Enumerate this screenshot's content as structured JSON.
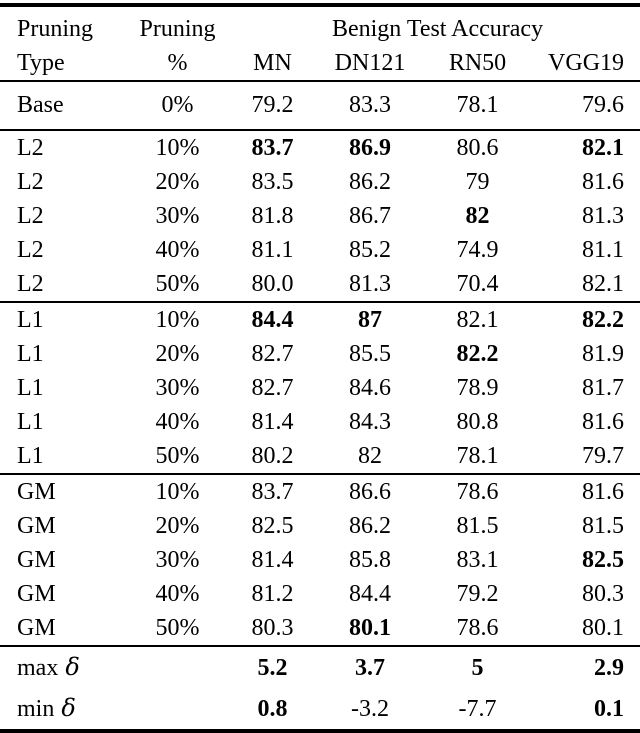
{
  "page": {
    "background_color": "#ffffff",
    "text_color": "#000000",
    "rule_color": "#000000"
  },
  "table": {
    "header": {
      "col1_line1": "Pruning",
      "col1_line2": "Type",
      "col2_line1": "Pruning",
      "col2_line2": "%",
      "group_title": "Benign Test Accuracy",
      "models": [
        "MN",
        "DN121",
        "RN50",
        "VGG19"
      ]
    },
    "base_row": {
      "type": "Base",
      "pct": "0%",
      "values": [
        "79.2",
        "83.3",
        "78.1",
        "79.6"
      ],
      "bold": [
        false,
        false,
        false,
        false
      ]
    },
    "sections": [
      {
        "name": "L2",
        "rows": [
          {
            "type": "L2",
            "pct": "10%",
            "values": [
              "83.7",
              "86.9",
              "80.6",
              "82.1"
            ],
            "bold": [
              true,
              true,
              false,
              true
            ]
          },
          {
            "type": "L2",
            "pct": "20%",
            "values": [
              "83.5",
              "86.2",
              "79",
              "81.6"
            ],
            "bold": [
              false,
              false,
              false,
              false
            ]
          },
          {
            "type": "L2",
            "pct": "30%",
            "values": [
              "81.8",
              "86.7",
              "82",
              "81.3"
            ],
            "bold": [
              false,
              false,
              true,
              false
            ]
          },
          {
            "type": "L2",
            "pct": "40%",
            "values": [
              "81.1",
              "85.2",
              "74.9",
              "81.1"
            ],
            "bold": [
              false,
              false,
              false,
              false
            ]
          },
          {
            "type": "L2",
            "pct": "50%",
            "values": [
              "80.0",
              "81.3",
              "70.4",
              "82.1"
            ],
            "bold": [
              false,
              false,
              false,
              false
            ]
          }
        ]
      },
      {
        "name": "L1",
        "rows": [
          {
            "type": "L1",
            "pct": "10%",
            "values": [
              "84.4",
              "87",
              "82.1",
              "82.2"
            ],
            "bold": [
              true,
              true,
              false,
              true
            ]
          },
          {
            "type": "L1",
            "pct": "20%",
            "values": [
              "82.7",
              "85.5",
              "82.2",
              "81.9"
            ],
            "bold": [
              false,
              false,
              true,
              false
            ]
          },
          {
            "type": "L1",
            "pct": "30%",
            "values": [
              "82.7",
              "84.6",
              "78.9",
              "81.7"
            ],
            "bold": [
              false,
              false,
              false,
              false
            ]
          },
          {
            "type": "L1",
            "pct": "40%",
            "values": [
              "81.4",
              "84.3",
              "80.8",
              "81.6"
            ],
            "bold": [
              false,
              false,
              false,
              false
            ]
          },
          {
            "type": "L1",
            "pct": "50%",
            "values": [
              "80.2",
              "82",
              "78.1",
              "79.7"
            ],
            "bold": [
              false,
              false,
              false,
              false
            ]
          }
        ]
      },
      {
        "name": "GM",
        "rows": [
          {
            "type": "GM",
            "pct": "10%",
            "values": [
              "83.7",
              "86.6",
              "78.6",
              "81.6"
            ],
            "bold": [
              false,
              false,
              false,
              false
            ]
          },
          {
            "type": "GM",
            "pct": "20%",
            "values": [
              "82.5",
              "86.2",
              "81.5",
              "81.5"
            ],
            "bold": [
              false,
              false,
              false,
              false
            ]
          },
          {
            "type": "GM",
            "pct": "30%",
            "values": [
              "81.4",
              "85.8",
              "83.1",
              "82.5"
            ],
            "bold": [
              false,
              false,
              false,
              true
            ]
          },
          {
            "type": "GM",
            "pct": "40%",
            "values": [
              "81.2",
              "84.4",
              "79.2",
              "80.3"
            ],
            "bold": [
              false,
              false,
              false,
              false
            ]
          },
          {
            "type": "GM",
            "pct": "50%",
            "values": [
              "80.3",
              "80.1",
              "78.6",
              "80.1"
            ],
            "bold": [
              false,
              true,
              false,
              false
            ]
          }
        ]
      }
    ],
    "summary_rows": [
      {
        "label": "max",
        "delta": "δ",
        "pct": "",
        "values": [
          "5.2",
          "3.7",
          "5",
          "2.9"
        ],
        "bold": [
          true,
          true,
          true,
          true
        ]
      },
      {
        "label": "min",
        "delta": "δ",
        "pct": "",
        "values": [
          "0.8",
          "-3.2",
          "-7.7",
          "0.1"
        ],
        "bold": [
          true,
          false,
          false,
          true
        ]
      }
    ]
  }
}
